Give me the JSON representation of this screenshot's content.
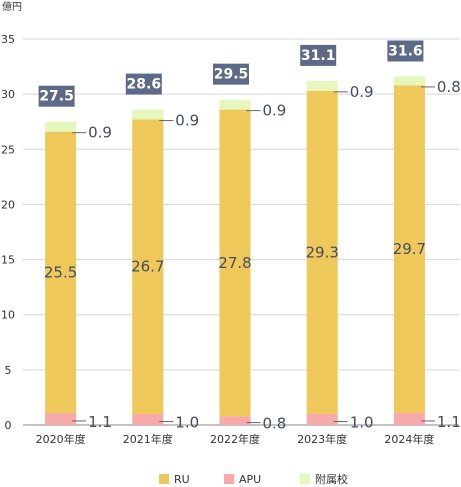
{
  "chart_data": {
    "type": "bar",
    "stacked": true,
    "unit": "億円",
    "categories": [
      "2020年度",
      "2021年度",
      "2022年度",
      "2023年度",
      "2024年度"
    ],
    "series": [
      {
        "name": "APU",
        "values": [
          1.1,
          1.0,
          0.8,
          1.0,
          1.1
        ],
        "color": "#f8a9a9"
      },
      {
        "name": "RU",
        "values": [
          25.5,
          26.7,
          27.8,
          29.3,
          29.7
        ],
        "color": "#eec95a"
      },
      {
        "name": "附属校",
        "values": [
          0.9,
          0.9,
          0.9,
          0.9,
          0.8
        ],
        "color": "#e5f7bd"
      }
    ],
    "data_labels": {
      "APU": [
        "1.1",
        "1.0",
        "0.8",
        "1.0",
        "1.1"
      ],
      "RU": [
        "25.5",
        "26.7",
        "27.8",
        "29.3",
        "29.7"
      ],
      "附属校": [
        "0.9",
        "0.9",
        "0.9",
        "0.9",
        "0.8"
      ]
    },
    "totals": [
      "27.5",
      "28.6",
      "29.5",
      "31.1",
      "31.6"
    ],
    "total_box_color": "#5c6a88",
    "yticks": [
      "0",
      "5",
      "10",
      "15",
      "20",
      "25",
      "30",
      "35"
    ],
    "ylim": [
      0,
      35
    ],
    "grid": true,
    "legend": {
      "position": "bottom",
      "order": [
        "RU",
        "APU",
        "附属校"
      ]
    }
  }
}
